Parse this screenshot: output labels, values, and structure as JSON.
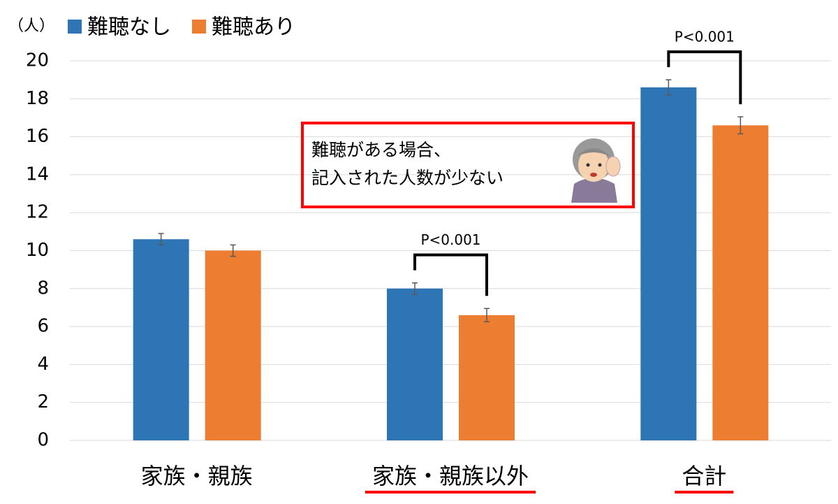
{
  "chart_data": {
    "type": "bar",
    "y_axis_label": "（人）",
    "categories": [
      "家族・親族",
      "家族・親族以外",
      "合計"
    ],
    "series": [
      {
        "name": "難聴なし",
        "color": "#2e75b6",
        "values": [
          10.6,
          8.0,
          18.6
        ],
        "errors": [
          0.3,
          0.3,
          0.4
        ]
      },
      {
        "name": "難聴あり",
        "color": "#ed7d31",
        "values": [
          10.0,
          6.6,
          16.6
        ],
        "errors": [
          0.3,
          0.35,
          0.45
        ]
      }
    ],
    "ylim": [
      0,
      20
    ],
    "yticks": [
      0,
      2,
      4,
      6,
      8,
      10,
      12,
      14,
      16,
      18,
      20
    ],
    "grid": true,
    "significance": [
      {
        "category": 1,
        "label": "P<0.001"
      },
      {
        "category": 2,
        "label": "P<0.001"
      }
    ],
    "highlighted_categories": [
      1,
      2
    ],
    "highlight_color": "#ff0000",
    "callout": {
      "lines": [
        "難聴がある場合、",
        "記入された人数が少ない"
      ],
      "border_color": "#ff0000"
    }
  }
}
